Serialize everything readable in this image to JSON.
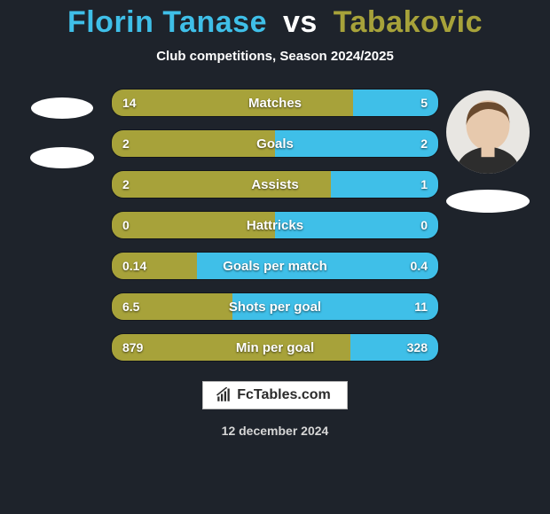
{
  "title": {
    "player1": "Florin Tanase",
    "vs": "vs",
    "player2": "Tabakovic",
    "player1_color": "#3fbfe8",
    "player2_color": "#a7a23a",
    "vs_color": "#ffffff",
    "fontsize": 34
  },
  "subtitle": "Club competitions, Season 2024/2025",
  "background_color": "#1e232b",
  "bar_style": {
    "height": 32,
    "border_radius": 14,
    "gap": 14,
    "left_color": "#a7a23a",
    "right_color": "#3fbfe8",
    "label_color": "#ffffff",
    "label_fontsize": 15,
    "value_fontsize": 14
  },
  "stats": [
    {
      "label": "Matches",
      "left_value": "14",
      "right_value": "5",
      "left_pct": 74,
      "right_pct": 26
    },
    {
      "label": "Goals",
      "left_value": "2",
      "right_value": "2",
      "left_pct": 50,
      "right_pct": 50
    },
    {
      "label": "Assists",
      "left_value": "2",
      "right_value": "1",
      "left_pct": 67,
      "right_pct": 33
    },
    {
      "label": "Hattricks",
      "left_value": "0",
      "right_value": "0",
      "left_pct": 50,
      "right_pct": 50
    },
    {
      "label": "Goals per match",
      "left_value": "0.14",
      "right_value": "0.4",
      "left_pct": 26,
      "right_pct": 74
    },
    {
      "label": "Shots per goal",
      "left_value": "6.5",
      "right_value": "11",
      "left_pct": 37,
      "right_pct": 63
    },
    {
      "label": "Min per goal",
      "left_value": "879",
      "right_value": "328",
      "left_pct": 73,
      "right_pct": 27
    }
  ],
  "player_left": {
    "avatar_bg": "#ffffff",
    "club_badge_bg": "#ffffff"
  },
  "player_right": {
    "avatar_bg": "#e8e6e2",
    "club_badge_bg": "#ffffff"
  },
  "logo_text": "FcTables.com",
  "date": "12 december 2024"
}
